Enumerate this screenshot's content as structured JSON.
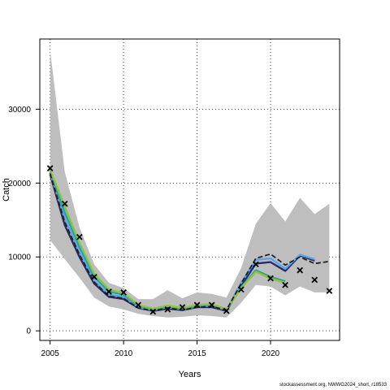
{
  "chart_data": {
    "type": "line",
    "xlabel": "Years",
    "ylabel": "Catch",
    "xlim": [
      2004.3,
      2024.7
    ],
    "ylim": [
      -1300,
      39500
    ],
    "x_ticks": [
      2005,
      2010,
      2015,
      2020
    ],
    "y_ticks": [
      0,
      10000,
      20000,
      30000
    ],
    "grid": true,
    "x": [
      2005,
      2006,
      2007,
      2008,
      2009,
      2010,
      2011,
      2012,
      2013,
      2014,
      2015,
      2016,
      2017,
      2018,
      2019,
      2020,
      2021,
      2022,
      2023,
      2024
    ],
    "band": {
      "color": "#bebebe",
      "upper": [
        38000,
        21500,
        14000,
        9000,
        6500,
        5800,
        4300,
        4300,
        5500,
        4400,
        5200,
        5000,
        4500,
        8500,
        14500,
        17300,
        14800,
        18000,
        15800,
        17200
      ],
      "lower": [
        12300,
        9700,
        7200,
        4500,
        3300,
        2900,
        2300,
        2000,
        1800,
        1900,
        2100,
        2000,
        1800,
        3800,
        6200,
        6000,
        4800,
        6000,
        5200,
        5200
      ]
    },
    "observed": {
      "marker": "x",
      "values": [
        22000,
        17200,
        12700,
        7300,
        5300,
        5200,
        3500,
        2600,
        2900,
        3200,
        3500,
        3500,
        2700,
        5600,
        9000,
        7100,
        6200,
        8200,
        6900,
        5400
      ]
    },
    "series": [
      {
        "color": "#2a2a6e",
        "values": [
          21200,
          14300,
          10000,
          6400,
          4600,
          4300,
          3100,
          2700,
          3000,
          2800,
          3200,
          3200,
          2700,
          6100,
          9100,
          9300,
          8100,
          10200,
          9500,
          null
        ]
      },
      {
        "color": "#5aa6e6",
        "values": [
          21400,
          15200,
          10600,
          6800,
          4900,
          4600,
          3200,
          2800,
          3200,
          2900,
          3300,
          3400,
          2800,
          6500,
          9600,
          9800,
          8400,
          10300,
          9700,
          null
        ]
      },
      {
        "color": "#2aa39a",
        "values": [
          21600,
          16000,
          11300,
          7300,
          5300,
          4900,
          3400,
          2900,
          3300,
          3000,
          3400,
          3500,
          2900,
          5900,
          8200,
          7300,
          6700,
          null,
          null,
          null
        ]
      },
      {
        "color": "#8cc33f",
        "values": [
          21800,
          16800,
          11900,
          7700,
          5600,
          5100,
          3500,
          3000,
          3400,
          3100,
          3500,
          3600,
          2900,
          5800,
          8000,
          7100,
          6500,
          null,
          null,
          null
        ]
      },
      {
        "color": "#222222",
        "dashed": true,
        "values": [
          21300,
          14700,
          10300,
          6600,
          4700,
          4400,
          3100,
          2700,
          3100,
          2800,
          3200,
          3300,
          2800,
          6400,
          9800,
          10400,
          8900,
          10000,
          9100,
          9400
        ]
      }
    ]
  },
  "footer": "stockassessment.org, NWWG2024_short, r18533"
}
